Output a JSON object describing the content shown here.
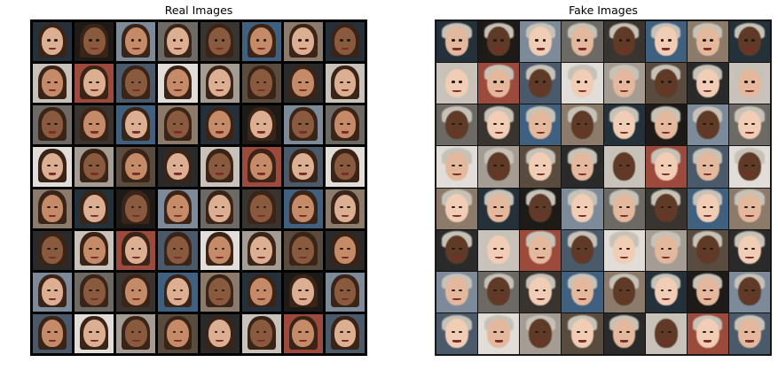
{
  "panels": [
    {
      "title": "Real Images"
    },
    {
      "title": "Fake Images"
    }
  ],
  "grid": {
    "rows": 8,
    "cols": 8
  },
  "palette": {
    "backgrounds": [
      "#2b2a2a",
      "#6d6a66",
      "#a59c94",
      "#1d1a18",
      "#4b5a6b",
      "#8c7b6a",
      "#c9c2bb",
      "#3a3430",
      "#5a4b3f",
      "#7d8a99",
      "#e2ddd8",
      "#24303a",
      "#9b4a3c",
      "#406080"
    ],
    "skins": [
      "#e3b89c",
      "#d39f80",
      "#c58a68",
      "#f0cdb4",
      "#b57b5b",
      "#8a5a3f",
      "#5e3a27",
      "#e8c1a6",
      "#dcae92"
    ],
    "hairs": [
      "#1a120d",
      "#3a2418",
      "#6b4428",
      "#a2764a",
      "#d7b77e",
      "#2a2a2a",
      "#7a3b20",
      "#c7c2b8",
      "#4d3020"
    ]
  }
}
